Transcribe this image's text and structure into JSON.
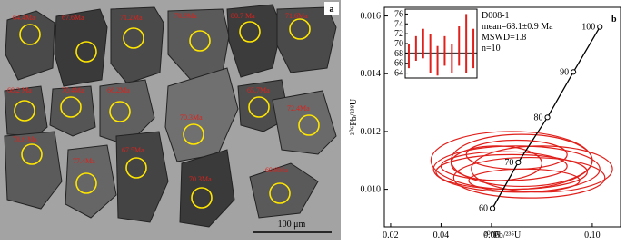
{
  "panel_a": {
    "label": "a",
    "scale_bar": "100 μm",
    "ages": [
      "64.4Ma",
      "67.6Ma",
      "71.2Ma",
      "70.9Ma",
      "80.7 Ma",
      "71.6Ma",
      "68.2 Ma",
      "70.4Ma",
      "66.2Ma",
      "65.7Ma",
      "72.4Ma",
      "70.3Ma",
      "70.6 Ma",
      "77.4Ma",
      "67.5Ma",
      "70.3Ma",
      "69.9Ma"
    ]
  },
  "chart_data": {
    "type": "concordia",
    "panel_label": "b",
    "x_label": "²⁰⁷Pb/²³⁵U",
    "y_label": "²⁰⁶Pb/²³⁸U",
    "xlim": [
      0.0175,
      0.1112
    ],
    "ylim": [
      0.0087,
      0.0163
    ],
    "xticks": [
      0.02,
      0.04,
      0.06,
      {
        "value": 0.1,
        "label": "0.10"
      }
    ],
    "yticks": [
      {
        "value": 0.01,
        "label": "0.010"
      },
      0.012,
      0.014,
      0.016
    ],
    "concordia": {
      "color": "#000000",
      "ages": [
        60,
        70,
        80,
        90,
        100
      ],
      "x": [
        0.0604,
        0.0706,
        0.0822,
        0.0925,
        0.103
      ],
      "y": [
        0.00934,
        0.01093,
        0.01249,
        0.01406,
        0.01562
      ]
    },
    "ellipse_color": "#e0201b",
    "ellipses": {
      "x": [
        0.07,
        0.068,
        0.072,
        0.065,
        0.075,
        0.07,
        0.08,
        0.062,
        0.073,
        0.068
      ],
      "y": [
        0.0107,
        0.0106,
        0.011,
        0.0108,
        0.0104,
        0.0112,
        0.0107,
        0.0109,
        0.0103,
        0.011
      ],
      "x_err": [
        0.033,
        0.03,
        0.028,
        0.025,
        0.03,
        0.02,
        0.028,
        0.018,
        0.022,
        0.032
      ],
      "y_err": [
        0.0008,
        0.0006,
        0.0009,
        0.0005,
        0.0007,
        0.0005,
        0.0008,
        0.0006,
        0.0004,
        0.001
      ]
    },
    "sample": "D008-1",
    "mean_text": "mean=68.1±0.9 Ma",
    "mswd_text": "MSWD=1.8",
    "n_text": "n=10",
    "inset": {
      "ylim": [
        63,
        77
      ],
      "yticks": [
        64,
        66,
        68,
        70,
        72,
        74,
        76
      ],
      "mean": 68.1,
      "color": "#e0201b",
      "values": [
        67.5,
        69,
        70,
        68,
        66.5,
        68.5,
        67,
        69.5,
        70,
        69
      ],
      "errors": [
        2.5,
        2.5,
        3,
        4,
        3,
        3,
        3,
        4,
        6,
        4
      ]
    }
  }
}
